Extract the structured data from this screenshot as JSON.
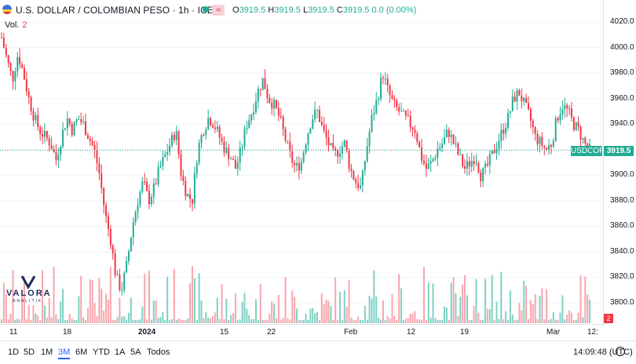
{
  "header": {
    "symbol_title": "U.S. DOLLAR / COLOMBIAN PESO · 1h · ICE",
    "exchange_badge": "≈",
    "o_label": "O",
    "o_value": "3919.5",
    "h_label": "H",
    "h_value": "3919.5",
    "l_label": "L",
    "l_value": "3919.5",
    "c_label": "C",
    "c_value": "3919.5",
    "change": "0.0 (0.00%)",
    "volume_label": "Vol.",
    "volume_value": "2"
  },
  "price_tag": {
    "symbol": "USDCOP",
    "price": "3919.5"
  },
  "volume_tag": "2",
  "logo": {
    "name": "VALORA",
    "sub": "ANALITIK"
  },
  "toolbar": {
    "ranges": [
      "1D",
      "5D",
      "1M",
      "3M",
      "6M",
      "YTD",
      "1A",
      "5A",
      "Todos"
    ],
    "active": "3M",
    "time": "14:09:48 (UTC)"
  },
  "colors": {
    "up": "#22ab94",
    "down": "#f23645",
    "up_vol": "#7fd1c3",
    "down_vol": "#f7a5ac"
  },
  "chart_data": {
    "type": "candlestick",
    "title": "U.S. DOLLAR / COLOMBIAN PESO · 1h · ICE",
    "ylabel": "",
    "xlabel": "",
    "ylim": [
      3790,
      4030
    ],
    "y_ticks": [
      "4020.0",
      "4000.0",
      "3980.0",
      "3960.0",
      "3940.0",
      "3920.0",
      "3900.0",
      "3880.0",
      "3860.0",
      "3840.0",
      "3820.0",
      "3800.0"
    ],
    "x_ticks": [
      "11",
      "18",
      "2024",
      "15",
      "22",
      "Feb",
      "12",
      "19",
      "Mar",
      "12:"
    ],
    "last_price": 3919.5,
    "close_path": [
      4008,
      3990,
      3975,
      3995,
      3980,
      3960,
      3945,
      3935,
      3930,
      3925,
      3912,
      3930,
      3945,
      3935,
      3945,
      3940,
      3930,
      3920,
      3900,
      3870,
      3850,
      3820,
      3810,
      3830,
      3860,
      3880,
      3895,
      3880,
      3890,
      3905,
      3915,
      3925,
      3935,
      3900,
      3885,
      3880,
      3920,
      3935,
      3945,
      3940,
      3930,
      3920,
      3915,
      3905,
      3920,
      3940,
      3950,
      3965,
      3975,
      3960,
      3955,
      3945,
      3930,
      3915,
      3905,
      3910,
      3930,
      3945,
      3950,
      3935,
      3925,
      3915,
      3920,
      3925,
      3905,
      3895,
      3890,
      3920,
      3945,
      3960,
      3980,
      3965,
      3955,
      3950,
      3945,
      3940,
      3935,
      3915,
      3905,
      3910,
      3920,
      3925,
      3935,
      3925,
      3915,
      3905,
      3910,
      3915,
      3900,
      3905,
      3915,
      3925,
      3935,
      3945,
      3960,
      3965,
      3955,
      3945,
      3930,
      3925,
      3920,
      3925,
      3945,
      3955,
      3950,
      3940,
      3935,
      3925,
      3919.5
    ],
    "volume_last": 2
  }
}
